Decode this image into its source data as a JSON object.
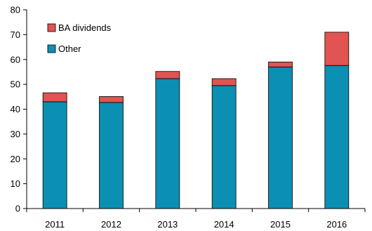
{
  "chart_data": {
    "type": "bar",
    "stacked": true,
    "categories": [
      "2011",
      "2012",
      "2013",
      "2014",
      "2015",
      "2016"
    ],
    "series": [
      {
        "name": "Other",
        "values": [
          43.0,
          42.7,
          52.3,
          49.5,
          57.0,
          57.6
        ],
        "color": "#0b8fb3"
      },
      {
        "name": "BA dividends",
        "values": [
          3.6,
          2.4,
          2.9,
          2.8,
          2.0,
          13.4
        ],
        "color": "#e05452"
      }
    ],
    "title": "",
    "xlabel": "",
    "ylabel": "",
    "ylim": [
      0,
      80
    ],
    "yticks": [
      "0",
      "10",
      "20",
      "30",
      "40",
      "50",
      "60",
      "70",
      "80"
    ],
    "grid": false,
    "legend_position": "top-left",
    "legend_order": [
      "BA dividends",
      "Other"
    ]
  }
}
